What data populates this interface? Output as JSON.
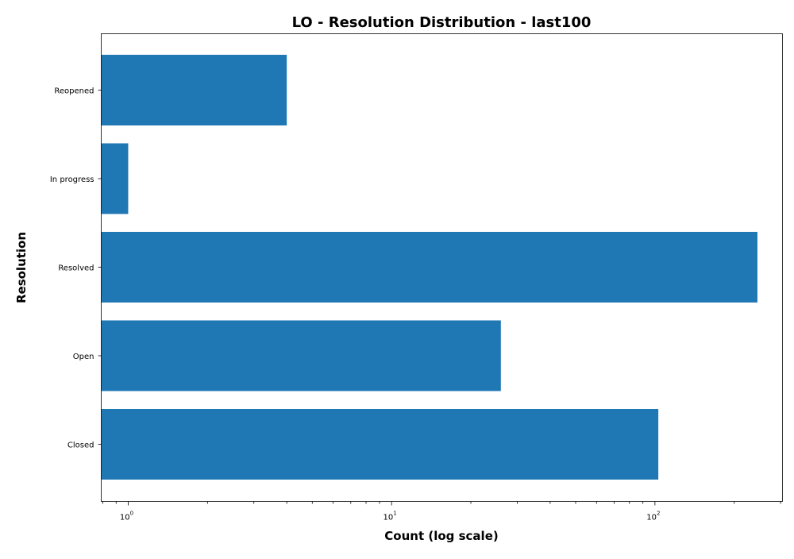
{
  "chart_data": {
    "type": "bar",
    "orientation": "horizontal",
    "title": "LO - Resolution Distribution - last100",
    "xlabel": "Count (log scale)",
    "ylabel": "Resolution",
    "x_scale": "log",
    "xlim": [
      0.79,
      305
    ],
    "x_ticks": [
      {
        "value": 1,
        "base": "10",
        "exp": "0"
      },
      {
        "value": 10,
        "base": "10",
        "exp": "1"
      },
      {
        "value": 100,
        "base": "10",
        "exp": "2"
      }
    ],
    "categories": [
      "Closed",
      "Open",
      "Resolved",
      "In progress",
      "Reopened"
    ],
    "values": [
      103,
      26,
      245,
      1,
      4
    ],
    "bar_color": "#1f77b4",
    "grid": false,
    "legend": "none"
  }
}
